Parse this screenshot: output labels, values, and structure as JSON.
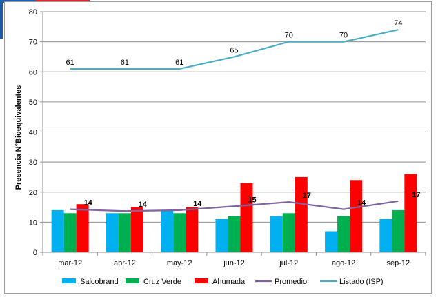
{
  "chart_data": {
    "type": "bar",
    "title": "",
    "xlabel": "",
    "ylabel": "Presencia N°Bioequivalentes",
    "ylim": [
      0,
      80
    ],
    "yticks": [
      0,
      10,
      20,
      30,
      40,
      50,
      60,
      70,
      80
    ],
    "grid": true,
    "legend_position": "bottom",
    "categories": [
      "mar-12",
      "abr-12",
      "may-12",
      "jun-12",
      "jul-12",
      "ago-12",
      "sep-12"
    ],
    "series": [
      {
        "name": "Salcobrand",
        "type": "bar",
        "color": "#00b0f0",
        "values": [
          14,
          13,
          14,
          11,
          12,
          7,
          11
        ]
      },
      {
        "name": "Cruz Verde",
        "type": "bar",
        "color": "#00b050",
        "values": [
          13,
          13,
          13,
          12,
          13,
          12,
          14
        ]
      },
      {
        "name": "Ahumada",
        "type": "bar",
        "color": "#ff0000",
        "values": [
          16,
          15,
          15,
          23,
          25,
          24,
          26
        ]
      },
      {
        "name": "Promedio",
        "type": "line",
        "color": "#8064a2",
        "values": [
          14.3,
          13.7,
          14,
          15.3,
          16.7,
          14.3,
          17
        ],
        "labels": [
          "14",
          "14",
          "14",
          "15",
          "17",
          "14",
          "17"
        ]
      },
      {
        "name": "Listado (ISP)",
        "type": "line",
        "color": "#4bacc6",
        "values": [
          61,
          61,
          61,
          65,
          70,
          70,
          74
        ],
        "labels": [
          "61",
          "61",
          "61",
          "65",
          "70",
          "70",
          "74"
        ]
      }
    ]
  }
}
